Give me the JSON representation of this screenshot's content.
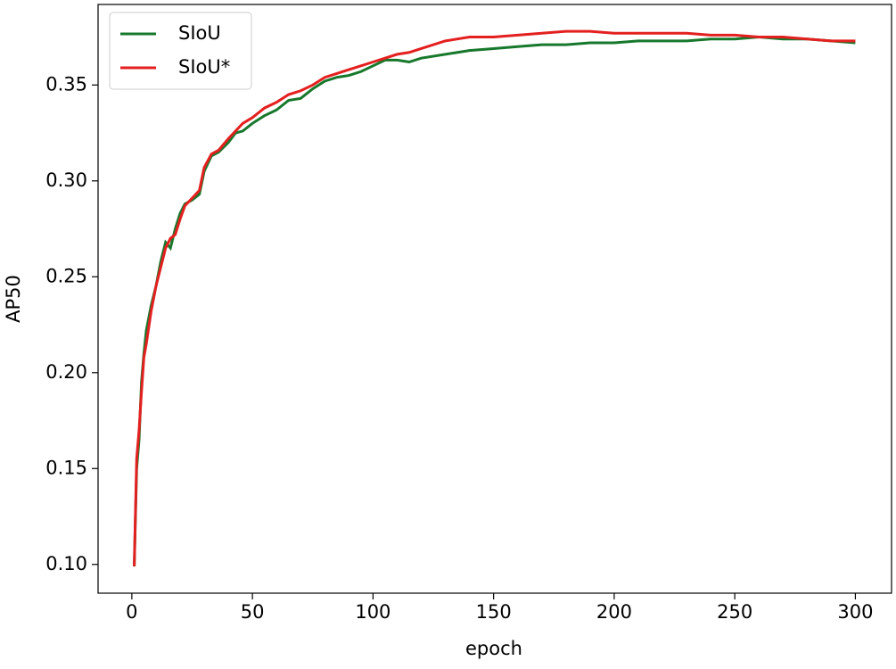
{
  "chart_data": {
    "type": "line",
    "x_label": "epoch",
    "y_label": "AP50",
    "x": [
      1,
      2,
      3,
      4,
      5,
      6,
      8,
      10,
      12,
      14,
      16,
      18,
      20,
      22,
      25,
      28,
      30,
      33,
      36,
      40,
      43,
      46,
      50,
      55,
      60,
      65,
      70,
      75,
      80,
      85,
      90,
      95,
      100,
      105,
      110,
      115,
      120,
      130,
      140,
      150,
      160,
      170,
      180,
      190,
      200,
      210,
      220,
      230,
      240,
      250,
      260,
      270,
      280,
      290,
      300
    ],
    "series": [
      {
        "name": "SIoU",
        "color": "#17782c",
        "values": [
          0.099,
          0.15,
          0.165,
          0.195,
          0.21,
          0.222,
          0.235,
          0.245,
          0.258,
          0.268,
          0.265,
          0.275,
          0.283,
          0.288,
          0.29,
          0.293,
          0.305,
          0.313,
          0.315,
          0.32,
          0.325,
          0.326,
          0.33,
          0.334,
          0.337,
          0.342,
          0.343,
          0.348,
          0.352,
          0.354,
          0.355,
          0.357,
          0.36,
          0.363,
          0.363,
          0.362,
          0.364,
          0.366,
          0.368,
          0.369,
          0.37,
          0.371,
          0.371,
          0.372,
          0.372,
          0.373,
          0.373,
          0.373,
          0.374,
          0.374,
          0.375,
          0.374,
          0.374,
          0.373,
          0.372
        ]
      },
      {
        "name": "SIoU*",
        "color": "#e3201f",
        "values": [
          0.099,
          0.155,
          0.17,
          0.19,
          0.208,
          0.215,
          0.232,
          0.245,
          0.255,
          0.265,
          0.27,
          0.272,
          0.28,
          0.287,
          0.291,
          0.295,
          0.307,
          0.314,
          0.316,
          0.322,
          0.326,
          0.33,
          0.333,
          0.338,
          0.341,
          0.345,
          0.347,
          0.35,
          0.354,
          0.356,
          0.358,
          0.36,
          0.362,
          0.364,
          0.366,
          0.367,
          0.369,
          0.373,
          0.375,
          0.375,
          0.376,
          0.377,
          0.378,
          0.378,
          0.377,
          0.377,
          0.377,
          0.377,
          0.376,
          0.376,
          0.375,
          0.375,
          0.374,
          0.373,
          0.373
        ]
      }
    ],
    "xlim": [
      -14,
      315
    ],
    "ylim": [
      0.085,
      0.392
    ],
    "xticks": [
      0,
      50,
      100,
      150,
      200,
      250,
      300
    ],
    "yticks": [
      {
        "value": 0.1,
        "label": "0.10"
      },
      {
        "value": 0.15,
        "label": "0.15"
      },
      {
        "value": 0.2,
        "label": "0.20"
      },
      {
        "value": 0.25,
        "label": "0.25"
      },
      {
        "value": 0.3,
        "label": "0.30"
      },
      {
        "value": 0.35,
        "label": "0.35"
      }
    ],
    "legend": "upper left"
  }
}
